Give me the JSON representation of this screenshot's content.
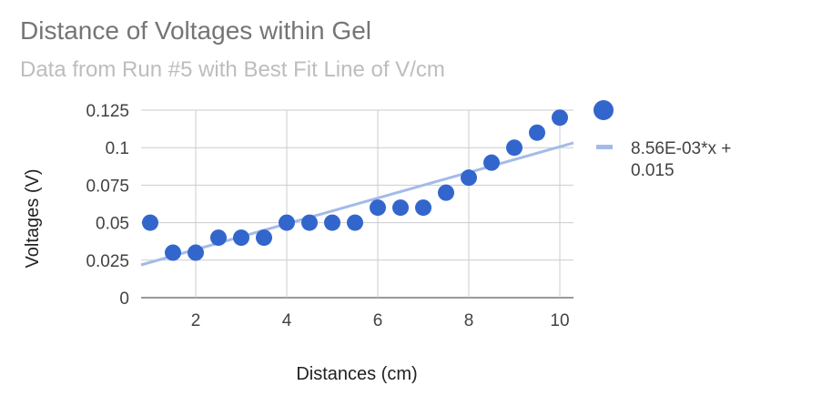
{
  "chart_data": {
    "type": "scatter",
    "title": "Distance of Voltages within Gel",
    "subtitle": "Data from Run #5 with Best Fit Line of V/cm",
    "xlabel": "Distances (cm)",
    "ylabel": "Voltages (V)",
    "xlim": [
      0.8,
      10.3
    ],
    "ylim": [
      0,
      0.125
    ],
    "x_ticks": [
      2,
      4,
      6,
      8,
      10
    ],
    "x_tick_labels": [
      "2",
      "4",
      "6",
      "8",
      "10"
    ],
    "y_ticks": [
      0,
      0.025,
      0.05,
      0.075,
      0.1,
      0.125
    ],
    "y_tick_labels": [
      "0",
      "0.025",
      "0.05",
      "0.075",
      "0.1",
      "0.125"
    ],
    "grid": true,
    "legend_position": "right",
    "series": [
      {
        "x": [
          1,
          1.5,
          2,
          2.5,
          3,
          3.5,
          4,
          4.5,
          5,
          5.5,
          6,
          6.5,
          7,
          7.5,
          8,
          8.5,
          9,
          9.5,
          10
        ],
        "y": [
          0.05,
          0.03,
          0.03,
          0.04,
          0.04,
          0.04,
          0.05,
          0.05,
          0.05,
          0.05,
          0.06,
          0.06,
          0.06,
          0.07,
          0.08,
          0.09,
          0.1,
          0.11,
          0.12
        ],
        "color": "#3366cc"
      }
    ],
    "trendline": {
      "label_line1": "8.56E-03*x +",
      "label_line2": "0.015",
      "slope": 0.00856,
      "intercept": 0.015,
      "color": "#a3bbe8"
    }
  }
}
